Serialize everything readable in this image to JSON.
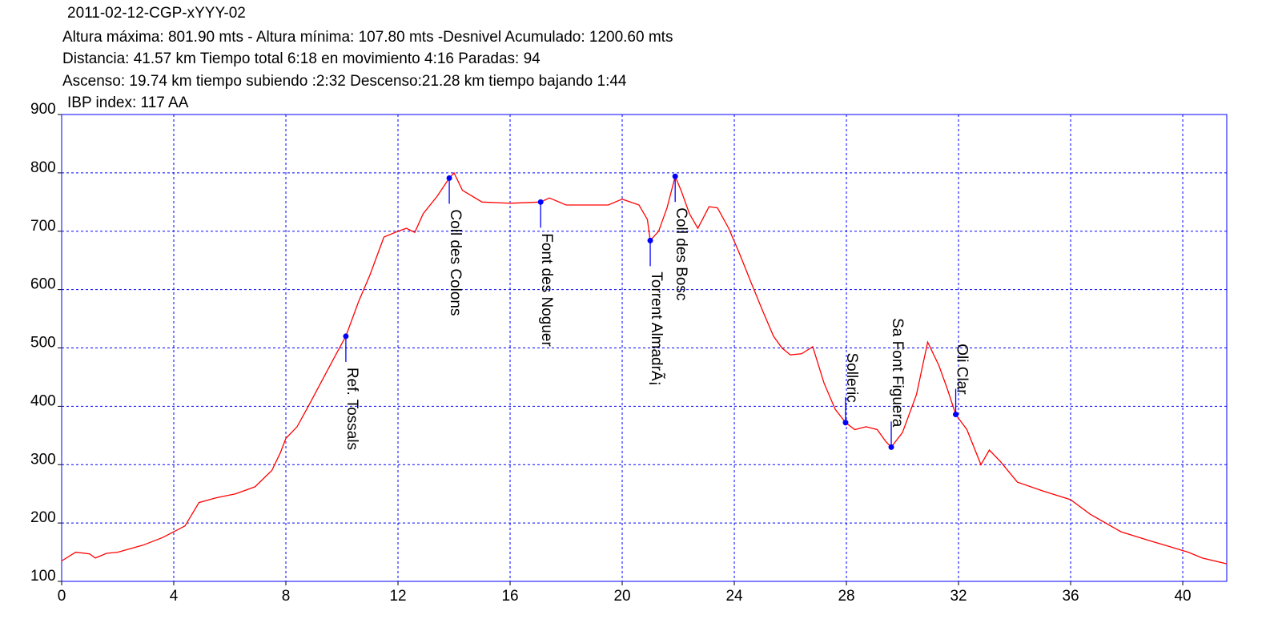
{
  "chart_data": {
    "type": "line",
    "title": "2011-02-12-CGP-xYYY-02",
    "subtitles": [
      "Altura máxima: 801.90 mts - Altura mínima: 107.80 mts -Desnivel Acumulado: 1200.60 mts",
      "Distancia: 41.57 km  Tiempo total 6:18  en movimiento 4:16 Paradas: 94",
      "Ascenso: 19.74 km  tiempo subiendo :2:32  Descenso:21.28 km tiempo bajando 1:44",
      "IBP index: 117 AA"
    ],
    "x": [
      0,
      0.5,
      1,
      1.2,
      1.6,
      2,
      2.9,
      3.6,
      4.4,
      4.9,
      5.5,
      6.2,
      6.9,
      7.5,
      7.8,
      8,
      8.4,
      8.8,
      9.3,
      9.8,
      10.14,
      10.6,
      11,
      11.5,
      12,
      12.3,
      12.6,
      12.9,
      13.4,
      13.83,
      14.0,
      14.3,
      15,
      16,
      17.09,
      17.4,
      18,
      19.5,
      20,
      20.6,
      20.9,
      21.0,
      21.3,
      21.6,
      21.89,
      22.1,
      22.4,
      22.7,
      23.1,
      23.4,
      23.8,
      24.2,
      24.6,
      25,
      25.4,
      25.7,
      26,
      26.4,
      26.8,
      27.2,
      27.6,
      27.97,
      28.3,
      28.7,
      29.1,
      29.4,
      29.6,
      30,
      30.5,
      30.9,
      31.3,
      31.6,
      31.9,
      32.3,
      32.8,
      33.1,
      33.5,
      34.1,
      35,
      36,
      36.7,
      37.8,
      38.8,
      39.5,
      40.2,
      40.7,
      41.57
    ],
    "values": [
      135,
      150,
      147,
      140,
      148,
      150,
      162,
      175,
      195,
      235,
      243,
      250,
      262,
      290,
      320,
      345,
      365,
      400,
      445,
      490,
      520,
      580,
      625,
      690,
      700,
      705,
      698,
      730,
      760,
      791,
      800,
      770,
      750,
      748,
      750,
      757,
      745,
      745,
      755,
      745,
      720,
      684,
      700,
      740,
      794,
      770,
      730,
      705,
      742,
      740,
      705,
      660,
      612,
      565,
      520,
      500,
      488,
      490,
      502,
      440,
      395,
      372,
      360,
      365,
      360,
      340,
      330,
      355,
      420,
      510,
      470,
      430,
      386,
      360,
      300,
      325,
      305,
      270,
      255,
      240,
      215,
      185,
      170,
      160,
      150,
      140,
      130
    ],
    "color": "#ff0000",
    "waypoints": [
      {
        "name": "Ref. Tossals",
        "km": 10.14,
        "elevation": 520
      },
      {
        "name": "Coll des Colons",
        "km": 13.83,
        "elevation": 791
      },
      {
        "name": "Font des Noguer",
        "km": 17.09,
        "elevation": 750
      },
      {
        "name": "Torrent AlmadrÃ¡",
        "km": 21.0,
        "elevation": 684
      },
      {
        "name": "Coll des Bosc",
        "km": 21.89,
        "elevation": 794
      },
      {
        "name": "Solleric",
        "km": 27.97,
        "elevation": 372
      },
      {
        "name": "Sa Font Figuera",
        "km": 29.6,
        "elevation": 330
      },
      {
        "name": "Oli Clar",
        "km": 31.9,
        "elevation": 386
      }
    ],
    "waypoint_color": "#0000ff",
    "xlim": [
      0,
      41.57
    ],
    "ylim": [
      100,
      900
    ],
    "xticks": [
      0,
      4,
      8,
      12,
      16,
      20,
      24,
      28,
      32,
      36,
      40
    ],
    "yticks": [
      100,
      200,
      300,
      400,
      500,
      600,
      700,
      800,
      900
    ],
    "grid": true,
    "axis_color": "#0000ff"
  }
}
